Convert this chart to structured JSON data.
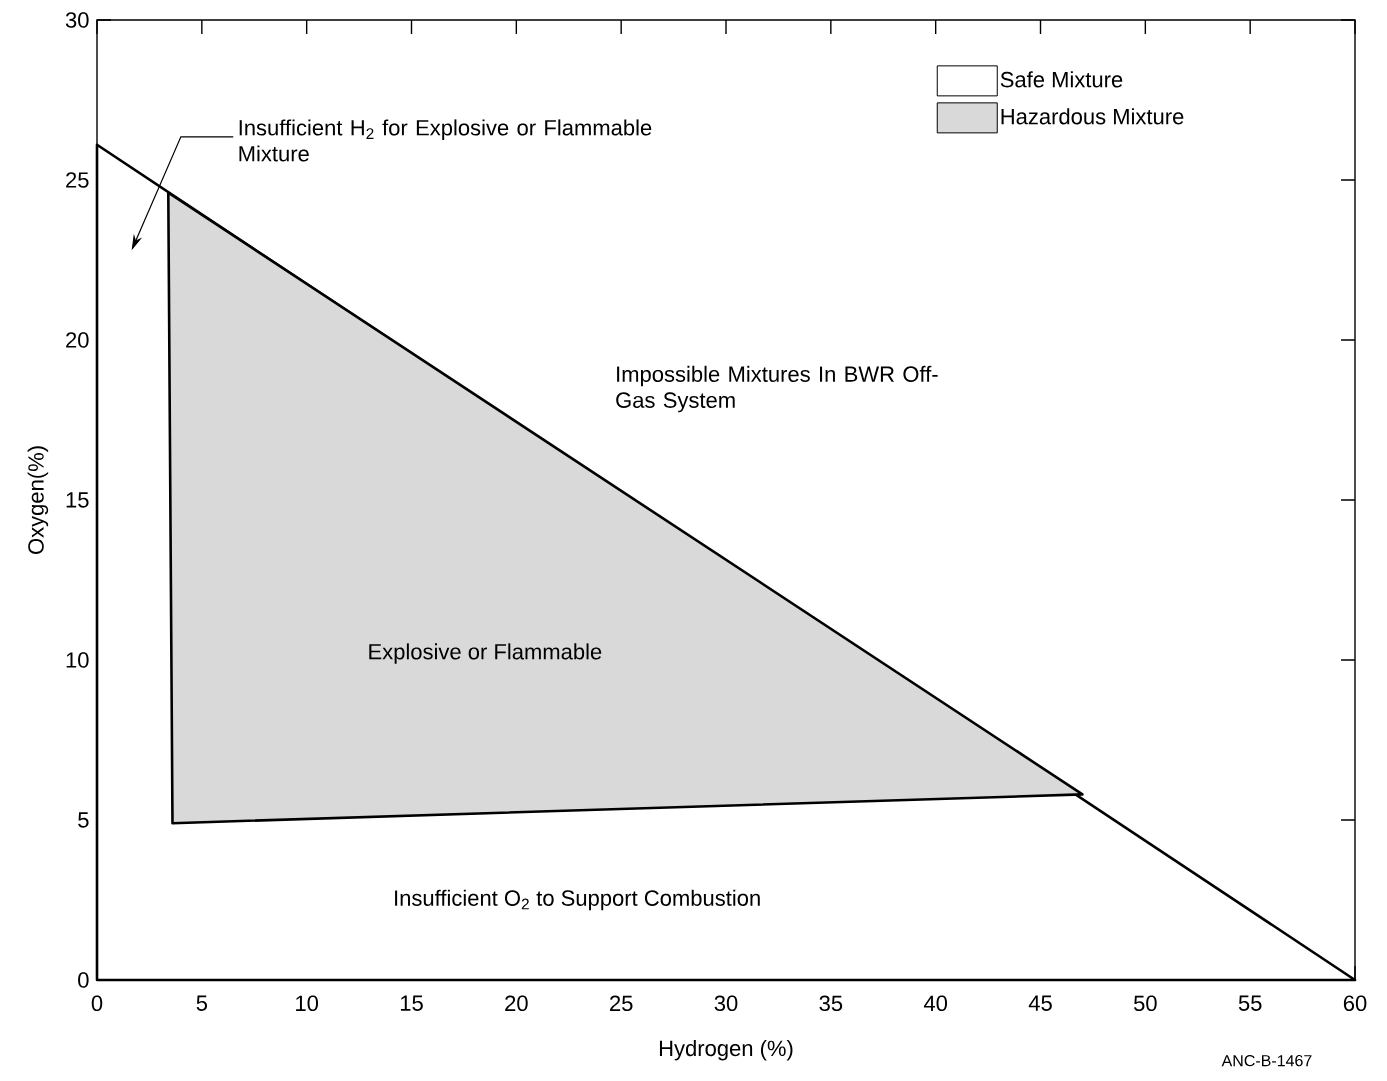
{
  "chart_data": {
    "type": "area",
    "xlabel": "Hydrogen (%)",
    "ylabel": "Oxygen(%)",
    "xlim": [
      0,
      60
    ],
    "ylim": [
      0,
      30
    ],
    "xticks": [
      0,
      5,
      10,
      15,
      20,
      25,
      30,
      35,
      40,
      45,
      50,
      55,
      60
    ],
    "yticks": [
      0,
      5,
      10,
      15,
      20,
      25,
      30
    ],
    "legend": "top right",
    "series": [
      {
        "name": "Safe Mixture",
        "color": "#ffffff",
        "x": [
          0,
          60
        ],
        "values": [
          26.1,
          0
        ]
      },
      {
        "name": "Hazardous Mixture",
        "type": "area",
        "color": "#d9d9d9",
        "x": [
          3.4,
          3.6,
          47
        ],
        "values": [
          24.6,
          4.9,
          5.8
        ]
      }
    ],
    "annotations": [
      "Insufficient H$_{2}$ for Explosive or Flammable Mixture",
      "Impossible Mixtures In BWR Off-Gas System",
      "Explosive or Flammable",
      "Insufficient O$_{2}$ to Support Combustion",
      "ANC-B-1467"
    ]
  }
}
